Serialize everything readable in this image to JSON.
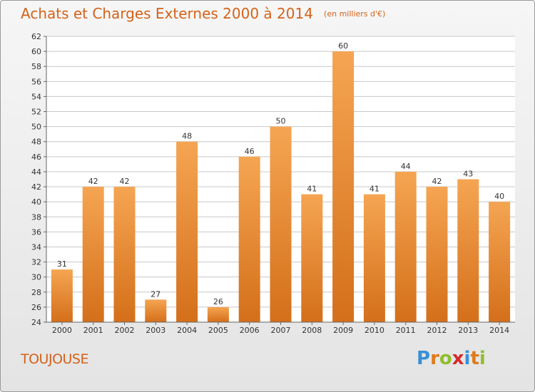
{
  "title": "Achats et Charges Externes 2000 à 2014",
  "subtitle": "(en milliers d'€)",
  "commune": "TOUJOUSE",
  "logo": {
    "letters": [
      "P",
      "r",
      "o",
      "x",
      "i",
      "t",
      "i"
    ],
    "colors": [
      "#3a8fd6",
      "#e07a1a",
      "#8fbf2a",
      "#d62a2a",
      "#3a8fd6",
      "#e07a1a",
      "#8fbf2a"
    ]
  },
  "colors": {
    "accent": "#d4621a",
    "bar_top": "#f5a552",
    "bar_bottom": "#d46f1a",
    "grid": "#c8c8c8"
  },
  "chart_data": {
    "type": "bar",
    "categories": [
      "2000",
      "2001",
      "2002",
      "2003",
      "2004",
      "2005",
      "2006",
      "2007",
      "2008",
      "2009",
      "2010",
      "2011",
      "2012",
      "2013",
      "2014"
    ],
    "values": [
      31,
      42,
      42,
      27,
      48,
      26,
      46,
      50,
      41,
      60,
      41,
      44,
      42,
      43,
      40
    ],
    "title": "Achats et Charges Externes 2000 à 2014",
    "subtitle": "(en milliers d'€)",
    "ylim": [
      24,
      62
    ],
    "yticks": [
      24,
      26,
      28,
      30,
      32,
      34,
      36,
      38,
      40,
      42,
      44,
      46,
      48,
      50,
      52,
      54,
      56,
      58,
      60,
      62
    ],
    "grid": true,
    "data_labels": true
  }
}
